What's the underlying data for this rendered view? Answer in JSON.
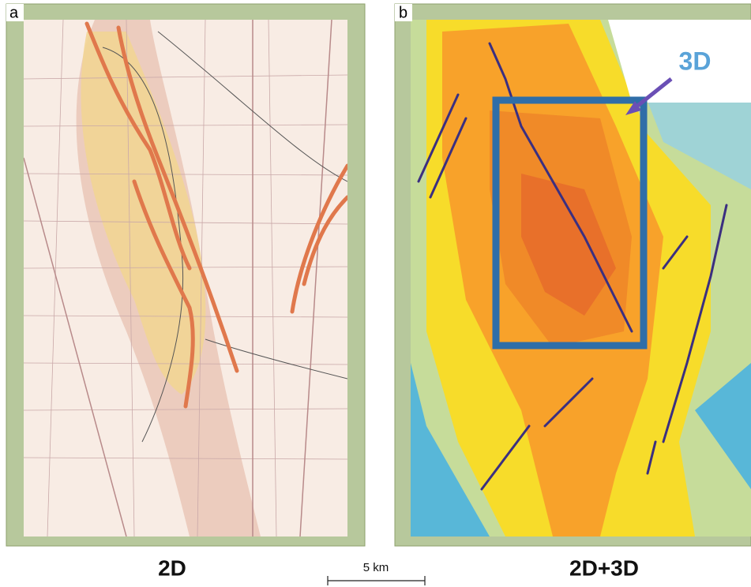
{
  "panels": [
    {
      "label": "a",
      "caption": "2D"
    },
    {
      "label": "b",
      "caption": "2D+3D",
      "annotation": "3D"
    }
  ],
  "scale_bar": {
    "label": "5 km"
  }
}
